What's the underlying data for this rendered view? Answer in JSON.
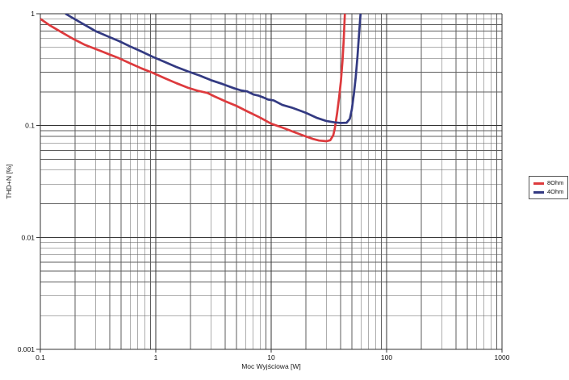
{
  "chart_data": {
    "type": "line",
    "title": "",
    "xlabel": "Moc Wyjściowa [W]",
    "ylabel": "THD+N [%]",
    "x_scale": "log",
    "y_scale": "log",
    "xlim": [
      0.1,
      1000
    ],
    "ylim": [
      0.001,
      1
    ],
    "x_ticks": [
      "0.1",
      "1",
      "10",
      "100",
      "1000"
    ],
    "y_ticks": [
      "1",
      "0.1",
      "0.01",
      "0.001"
    ],
    "grid": "log major+minor, both axes, full frame",
    "legend_position": "outside-right-middle",
    "series": [
      {
        "name": "8Ohm",
        "color": "#dd3a3d",
        "points": [
          [
            0.1,
            0.9
          ],
          [
            0.12,
            0.79
          ],
          [
            0.15,
            0.69
          ],
          [
            0.19,
            0.6
          ],
          [
            0.24,
            0.53
          ],
          [
            0.3,
            0.485
          ],
          [
            0.38,
            0.44
          ],
          [
            0.48,
            0.4
          ],
          [
            0.6,
            0.36
          ],
          [
            0.75,
            0.325
          ],
          [
            0.95,
            0.295
          ],
          [
            1.2,
            0.265
          ],
          [
            1.5,
            0.24
          ],
          [
            1.9,
            0.218
          ],
          [
            2.3,
            0.205
          ],
          [
            2.8,
            0.196
          ],
          [
            3.2,
            0.183
          ],
          [
            4.0,
            0.165
          ],
          [
            5.0,
            0.15
          ],
          [
            6.3,
            0.133
          ],
          [
            8.0,
            0.118
          ],
          [
            10,
            0.104
          ],
          [
            12.5,
            0.096
          ],
          [
            16,
            0.087
          ],
          [
            20,
            0.08
          ],
          [
            23,
            0.076
          ],
          [
            26,
            0.0735
          ],
          [
            30,
            0.0725
          ],
          [
            32.5,
            0.074
          ],
          [
            34.5,
            0.082
          ],
          [
            35.5,
            0.093
          ],
          [
            37.3,
            0.13
          ],
          [
            38.8,
            0.18
          ],
          [
            40.2,
            0.25
          ],
          [
            41.5,
            0.38
          ],
          [
            42.5,
            0.58
          ],
          [
            43.5,
            1.0
          ]
        ]
      },
      {
        "name": "4Ohm",
        "color": "#333a82",
        "points": [
          [
            0.165,
            1.0
          ],
          [
            0.2,
            0.89
          ],
          [
            0.25,
            0.78
          ],
          [
            0.3,
            0.7
          ],
          [
            0.38,
            0.63
          ],
          [
            0.48,
            0.57
          ],
          [
            0.6,
            0.51
          ],
          [
            0.75,
            0.46
          ],
          [
            0.95,
            0.41
          ],
          [
            1.2,
            0.37
          ],
          [
            1.5,
            0.335
          ],
          [
            1.9,
            0.305
          ],
          [
            2.4,
            0.28
          ],
          [
            3.0,
            0.255
          ],
          [
            3.8,
            0.235
          ],
          [
            4.8,
            0.215
          ],
          [
            5.5,
            0.206
          ],
          [
            6.2,
            0.202
          ],
          [
            7.0,
            0.19
          ],
          [
            7.8,
            0.185
          ],
          [
            8.6,
            0.178
          ],
          [
            9.4,
            0.171
          ],
          [
            10.5,
            0.168
          ],
          [
            12.5,
            0.153
          ],
          [
            15,
            0.145
          ],
          [
            17.5,
            0.137
          ],
          [
            20,
            0.13
          ],
          [
            25,
            0.117
          ],
          [
            30,
            0.11
          ],
          [
            35,
            0.107
          ],
          [
            40,
            0.1055
          ],
          [
            45,
            0.106
          ],
          [
            48,
            0.115
          ],
          [
            50,
            0.14
          ],
          [
            52,
            0.19
          ],
          [
            54,
            0.27
          ],
          [
            56,
            0.42
          ],
          [
            57.5,
            0.62
          ],
          [
            58.8,
            0.85
          ],
          [
            59.5,
            1.0
          ]
        ]
      }
    ]
  },
  "colors": {
    "grid_major": "#333333",
    "grid_minor": "#5e5e5e",
    "tick": "#333333",
    "axis_text": "#111111",
    "background": "#ffffff",
    "legend_border": "#555555"
  }
}
